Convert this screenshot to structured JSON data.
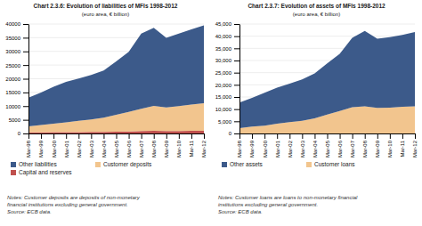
{
  "chart_data": [
    {
      "type": "area",
      "stacked": true,
      "grid": true,
      "legend": "bottom",
      "title": "Chart 2.3.6: Evolution of liabilities of MFIs 1998-2012",
      "subtitle": "(euro area, € billion)",
      "categories": [
        "Mar-98",
        "Mar-99",
        "Mar-00",
        "Mar-01",
        "Mar-02",
        "Mar-03",
        "Mar-04",
        "Mar-05",
        "Mar-06",
        "Mar-07",
        "Mar-08",
        "Mar-09",
        "Mar-10",
        "Mar-11",
        "Mar-12"
      ],
      "series": [
        {
          "name": "Capital and reserves",
          "color": "#C0504D",
          "values": [
            400,
            420,
            450,
            500,
            520,
            550,
            580,
            650,
            750,
            900,
            1000,
            900,
            900,
            950,
            950
          ]
        },
        {
          "name": "Customer deposits",
          "color": "#F2C58E",
          "values": [
            2200,
            2700,
            3100,
            3600,
            4100,
            4600,
            5200,
            6200,
            7100,
            8100,
            9100,
            8600,
            9100,
            9600,
            10100
          ]
        },
        {
          "name": "Other liabilities",
          "color": "#3C5A8A",
          "values": [
            10500,
            11800,
            13500,
            14800,
            15500,
            16200,
            17200,
            19500,
            22000,
            27500,
            28500,
            25500,
            26500,
            27500,
            28500
          ]
        }
      ],
      "ylim": [
        0,
        40000
      ],
      "yticks": [
        0,
        5000,
        10000,
        15000,
        20000,
        25000,
        30000,
        35000,
        40000
      ],
      "annotations": [
        "Notes: Customer deposits are deposits of non-monetary",
        "financial institutions excluding general government.",
        "Source: ECB data."
      ]
    },
    {
      "type": "area",
      "stacked": true,
      "grid": true,
      "legend": "bottom",
      "title": "Chart  2.3.7: Evolution of assets of MFIs 1998-2012",
      "subtitle": "(euro area, € billion)",
      "categories": [
        "Mar-98",
        "Mar-99",
        "Mar-00",
        "Mar-01",
        "Mar-02",
        "Mar-03",
        "Mar-04",
        "Mar-05",
        "Mar-06",
        "Mar-07",
        "Mar-08",
        "Mar-09",
        "Mar-10",
        "Mar-11",
        "Mar-12"
      ],
      "series": [
        {
          "name": "Customer loans",
          "color": "#F2C58E",
          "values": [
            2200,
            2800,
            3200,
            4000,
            4700,
            5200,
            6200,
            7800,
            9200,
            10800,
            11200,
            10500,
            10600,
            11000,
            11200
          ]
        },
        {
          "name": "Other assets",
          "color": "#3C5A8A",
          "values": [
            10500,
            11800,
            13500,
            14800,
            15800,
            17000,
            18500,
            21000,
            23500,
            28500,
            31000,
            28500,
            29000,
            29500,
            30500
          ]
        }
      ],
      "ylim": [
        0,
        45000
      ],
      "yticks": [
        0,
        {
          "value": 5000,
          "label": "5,000"
        },
        {
          "value": 10000,
          "label": "10,000"
        },
        {
          "value": 15000,
          "label": "15,000"
        },
        {
          "value": 20000,
          "label": "20,000"
        },
        {
          "value": 25000,
          "label": "25,000"
        },
        {
          "value": 30000,
          "label": "30,000"
        },
        {
          "value": 35000,
          "label": "35,000"
        },
        {
          "value": 40000,
          "label": "40,000"
        },
        {
          "value": 45000,
          "label": "45,000"
        }
      ],
      "annotations": [
        "Notes: Customer loans are loans to non-monetary financial",
        "institutions excluding general government.",
        "Source: ECB data."
      ]
    }
  ]
}
